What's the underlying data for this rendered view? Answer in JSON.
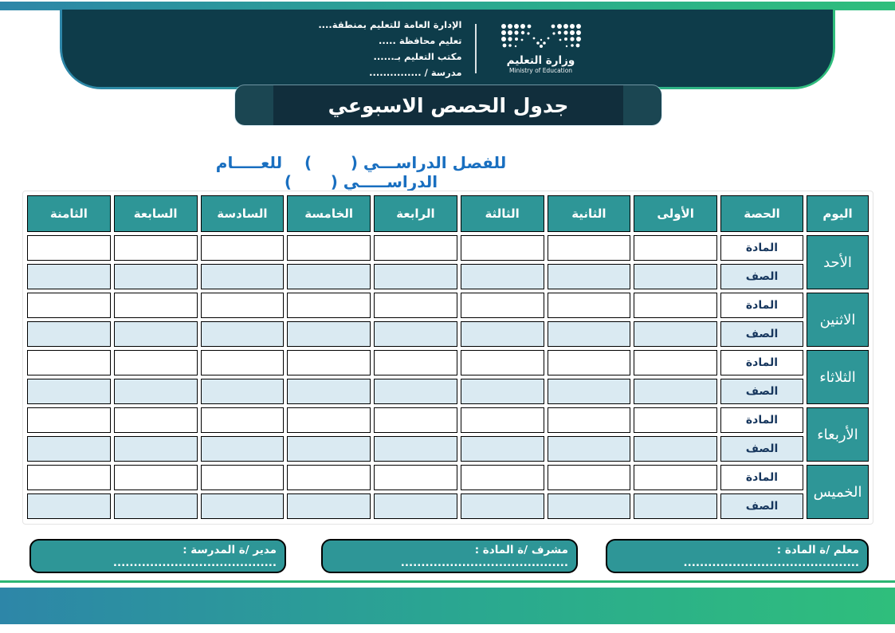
{
  "header": {
    "org_lines": [
      "الإدارة العامة للتعليم بمنطقة....",
      "تعليم محافظة .....",
      "مكتب التعليم بـ......",
      "مدرسة / ..............."
    ],
    "ministry_name_ar": "وزارة التعليم",
    "ministry_name_en": "Ministry of Education",
    "title": "جدول الحصص الاسبوعي",
    "subtitle": "للفصل الدراســـي (       )    للعـــــام الدراســـــي (       )"
  },
  "table": {
    "day_header": "اليوم",
    "period_headers": [
      "الحصة",
      "الأولى",
      "الثانية",
      "الثالثة",
      "الرابعة",
      "الخامسة",
      "السادسة",
      "السابعة",
      "الثامنة"
    ],
    "row_labels": {
      "subject": "المادة",
      "class": "الصف"
    },
    "days": [
      "الأحد",
      "الاثنين",
      "الثلاثاء",
      "الأربعاء",
      "الخميس"
    ],
    "empty_cell_value": ""
  },
  "signatures": [
    {
      "label": "معلم /ة المادة : ..........................................."
    },
    {
      "label": "مشرف /ة المادة : ........................................."
    },
    {
      "label": "مدير /ة المدرسة : ........................................"
    }
  ],
  "colors": {
    "panel_dark": "#0e3c4a",
    "banner_dark": "#112e3c",
    "table_teal": "#2e9697",
    "light_blue_cell": "#daeaf2",
    "navy_text": "#17375e",
    "subtitle_blue": "#196fc0",
    "gradient_left": "#2d86a8",
    "gradient_right": "#2fbe7c",
    "thin_line_green": "#2bb673"
  }
}
